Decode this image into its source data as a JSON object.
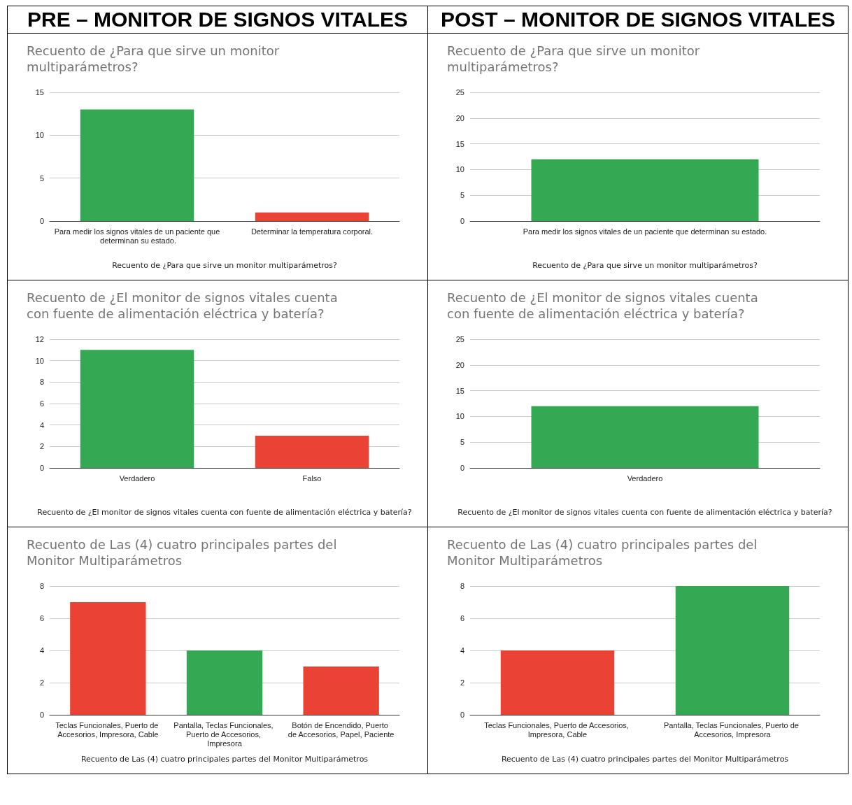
{
  "chart_data": [
    {
      "type": "bar",
      "title": "Recuento de ¿Para que sirve un monitor multiparámetros?",
      "xlabel": "Recuento de ¿Para que sirve un monitor multiparámetros?",
      "annotations": [
        "PRE – MONITOR DE SIGNOS VITALES"
      ],
      "categories": [
        "Para medir los signos vitales de un paciente que determinan su estado.",
        "Determinar la temperatura corporal."
      ],
      "values": [
        13,
        1
      ],
      "colors": [
        "#34a853",
        "#ea4335"
      ],
      "ylim": [
        0,
        15
      ],
      "yticks": [
        0,
        5,
        10,
        15
      ],
      "grid": "y"
    },
    {
      "type": "bar",
      "title": "Recuento de ¿Para que sirve un monitor multiparámetros?",
      "xlabel": "Recuento de ¿Para que sirve un monitor multiparámetros?",
      "annotations": [
        "POST – MONITOR DE SIGNOS VITALES"
      ],
      "categories": [
        "Para medir los signos vitales de un paciente que determinan su estado."
      ],
      "values": [
        12
      ],
      "colors": [
        "#34a853"
      ],
      "ylim": [
        0,
        25
      ],
      "yticks": [
        0,
        5,
        10,
        15,
        20,
        25
      ],
      "grid": "y"
    },
    {
      "type": "bar",
      "title": "Recuento de ¿El monitor de signos vitales cuenta con fuente de alimentación eléctrica y batería?",
      "xlabel": "Recuento de ¿El monitor de signos vitales cuenta con fuente de alimentación eléctrica y batería?",
      "categories": [
        "Verdadero",
        "Falso"
      ],
      "values": [
        11,
        3
      ],
      "colors": [
        "#34a853",
        "#ea4335"
      ],
      "ylim": [
        0,
        12
      ],
      "yticks": [
        0,
        2,
        4,
        6,
        8,
        10,
        12
      ],
      "grid": "y"
    },
    {
      "type": "bar",
      "title": "Recuento de ¿El monitor de signos vitales cuenta con fuente de alimentación eléctrica y batería?",
      "xlabel": "Recuento de ¿El monitor de signos vitales cuenta con fuente de alimentación eléctrica y batería?",
      "categories": [
        "Verdadero"
      ],
      "values": [
        12
      ],
      "colors": [
        "#34a853"
      ],
      "ylim": [
        0,
        25
      ],
      "yticks": [
        0,
        5,
        10,
        15,
        20,
        25
      ],
      "grid": "y"
    },
    {
      "type": "bar",
      "title": "Recuento de Las (4) cuatro principales partes del Monitor Multiparámetros",
      "xlabel": "Recuento de Las (4) cuatro principales partes del Monitor Multiparámetros",
      "categories": [
        "Teclas Funcionales, Puerto de Accesorios, Impresora, Cable",
        "Pantalla, Teclas Funcionales, Puerto de Accesorios, Impresora",
        "Botón de Encendido, Puerto de Accesorios, Papel, Paciente"
      ],
      "values": [
        7,
        4,
        3
      ],
      "colors": [
        "#ea4335",
        "#34a853",
        "#ea4335"
      ],
      "ylim": [
        0,
        8
      ],
      "yticks": [
        0,
        2,
        4,
        6,
        8
      ],
      "grid": "y"
    },
    {
      "type": "bar",
      "title": "Recuento de Las (4) cuatro principales partes del Monitor Multiparámetros",
      "xlabel": "Recuento de Las (4) cuatro principales partes del Monitor Multiparámetros",
      "categories": [
        "Teclas Funcionales, Puerto de Accesorios, Impresora, Cable",
        "Pantalla, Teclas Funcionales, Puerto de Accesorios, Impresora"
      ],
      "values": [
        4,
        8
      ],
      "colors": [
        "#ea4335",
        "#34a853"
      ],
      "ylim": [
        0,
        8
      ],
      "yticks": [
        0,
        2,
        4,
        6,
        8
      ],
      "grid": "y"
    }
  ]
}
